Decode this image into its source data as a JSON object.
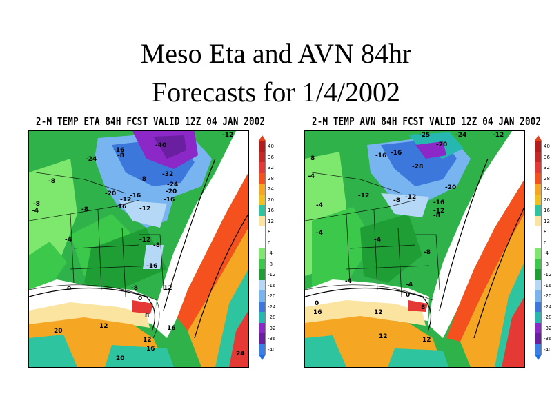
{
  "title": {
    "line1": "Meso Eta and AVN 84hr",
    "line2": "Forecasts for 1/4/2002"
  },
  "colors": {
    "above40": "#e8401c",
    "levels": [
      {
        "label": "40",
        "color": "#b71c1c"
      },
      {
        "label": "36",
        "color": "#c62828"
      },
      {
        "label": "32",
        "color": "#e53935"
      },
      {
        "label": "28",
        "color": "#f4511e"
      },
      {
        "label": "24",
        "color": "#f5a623"
      },
      {
        "label": "20",
        "color": "#f0c020"
      },
      {
        "label": "16",
        "color": "#2ec4a0"
      },
      {
        "label": "12",
        "color": "#fbe3a0"
      },
      {
        "label": "8",
        "color": "#ffffff"
      },
      {
        "label": "0",
        "color": "#ffffff"
      },
      {
        "label": "-4",
        "color": "#7ee86e"
      },
      {
        "label": "-8",
        "color": "#3cc84a"
      },
      {
        "label": "-12",
        "color": "#1e9e34"
      },
      {
        "label": "-16",
        "color": "#b4d8f5"
      },
      {
        "label": "-20",
        "color": "#78b4f0"
      },
      {
        "label": "-24",
        "color": "#3c78dc"
      },
      {
        "label": "-28",
        "color": "#26b8b0"
      },
      {
        "label": "-32",
        "color": "#8c28c8"
      },
      {
        "label": "-36",
        "color": "#6a1ea0"
      },
      {
        "label": "-40",
        "color": "#3a7ee8"
      }
    ],
    "below40": "#1e6ee0"
  },
  "panels": [
    {
      "id": "eta",
      "title": "2-M TEMP ETA 84H FCST VALID 12Z 04 JAN 2002",
      "labels": [
        "-40",
        "-16",
        "-8",
        "-24",
        "-32",
        "-24",
        "-20",
        "-8",
        "-16",
        "-20",
        "-12",
        "-16",
        "-12",
        "-16",
        "-8",
        "-12",
        "-8",
        "-4",
        "-16",
        "-8",
        "0",
        "0",
        "12",
        "12",
        "8",
        "16",
        "20",
        "12",
        "16",
        "20",
        "24",
        "-12",
        "-8",
        "-8",
        "-4"
      ]
    },
    {
      "id": "avn",
      "title": "2-M TEMP AVN 84H FCST VALID 12Z 04 JAN 2002",
      "labels": [
        "-20",
        "-25",
        "-24",
        "-16",
        "-16",
        "-28",
        "-20",
        "-12",
        "-12",
        "-16",
        "-8",
        "-12",
        "-8",
        "-4",
        "-4",
        "-8",
        "-4",
        "0",
        "0",
        "12",
        "16",
        "12",
        "8",
        "12",
        "-4",
        "-12",
        "-4",
        "8",
        "-4"
      ]
    }
  ]
}
